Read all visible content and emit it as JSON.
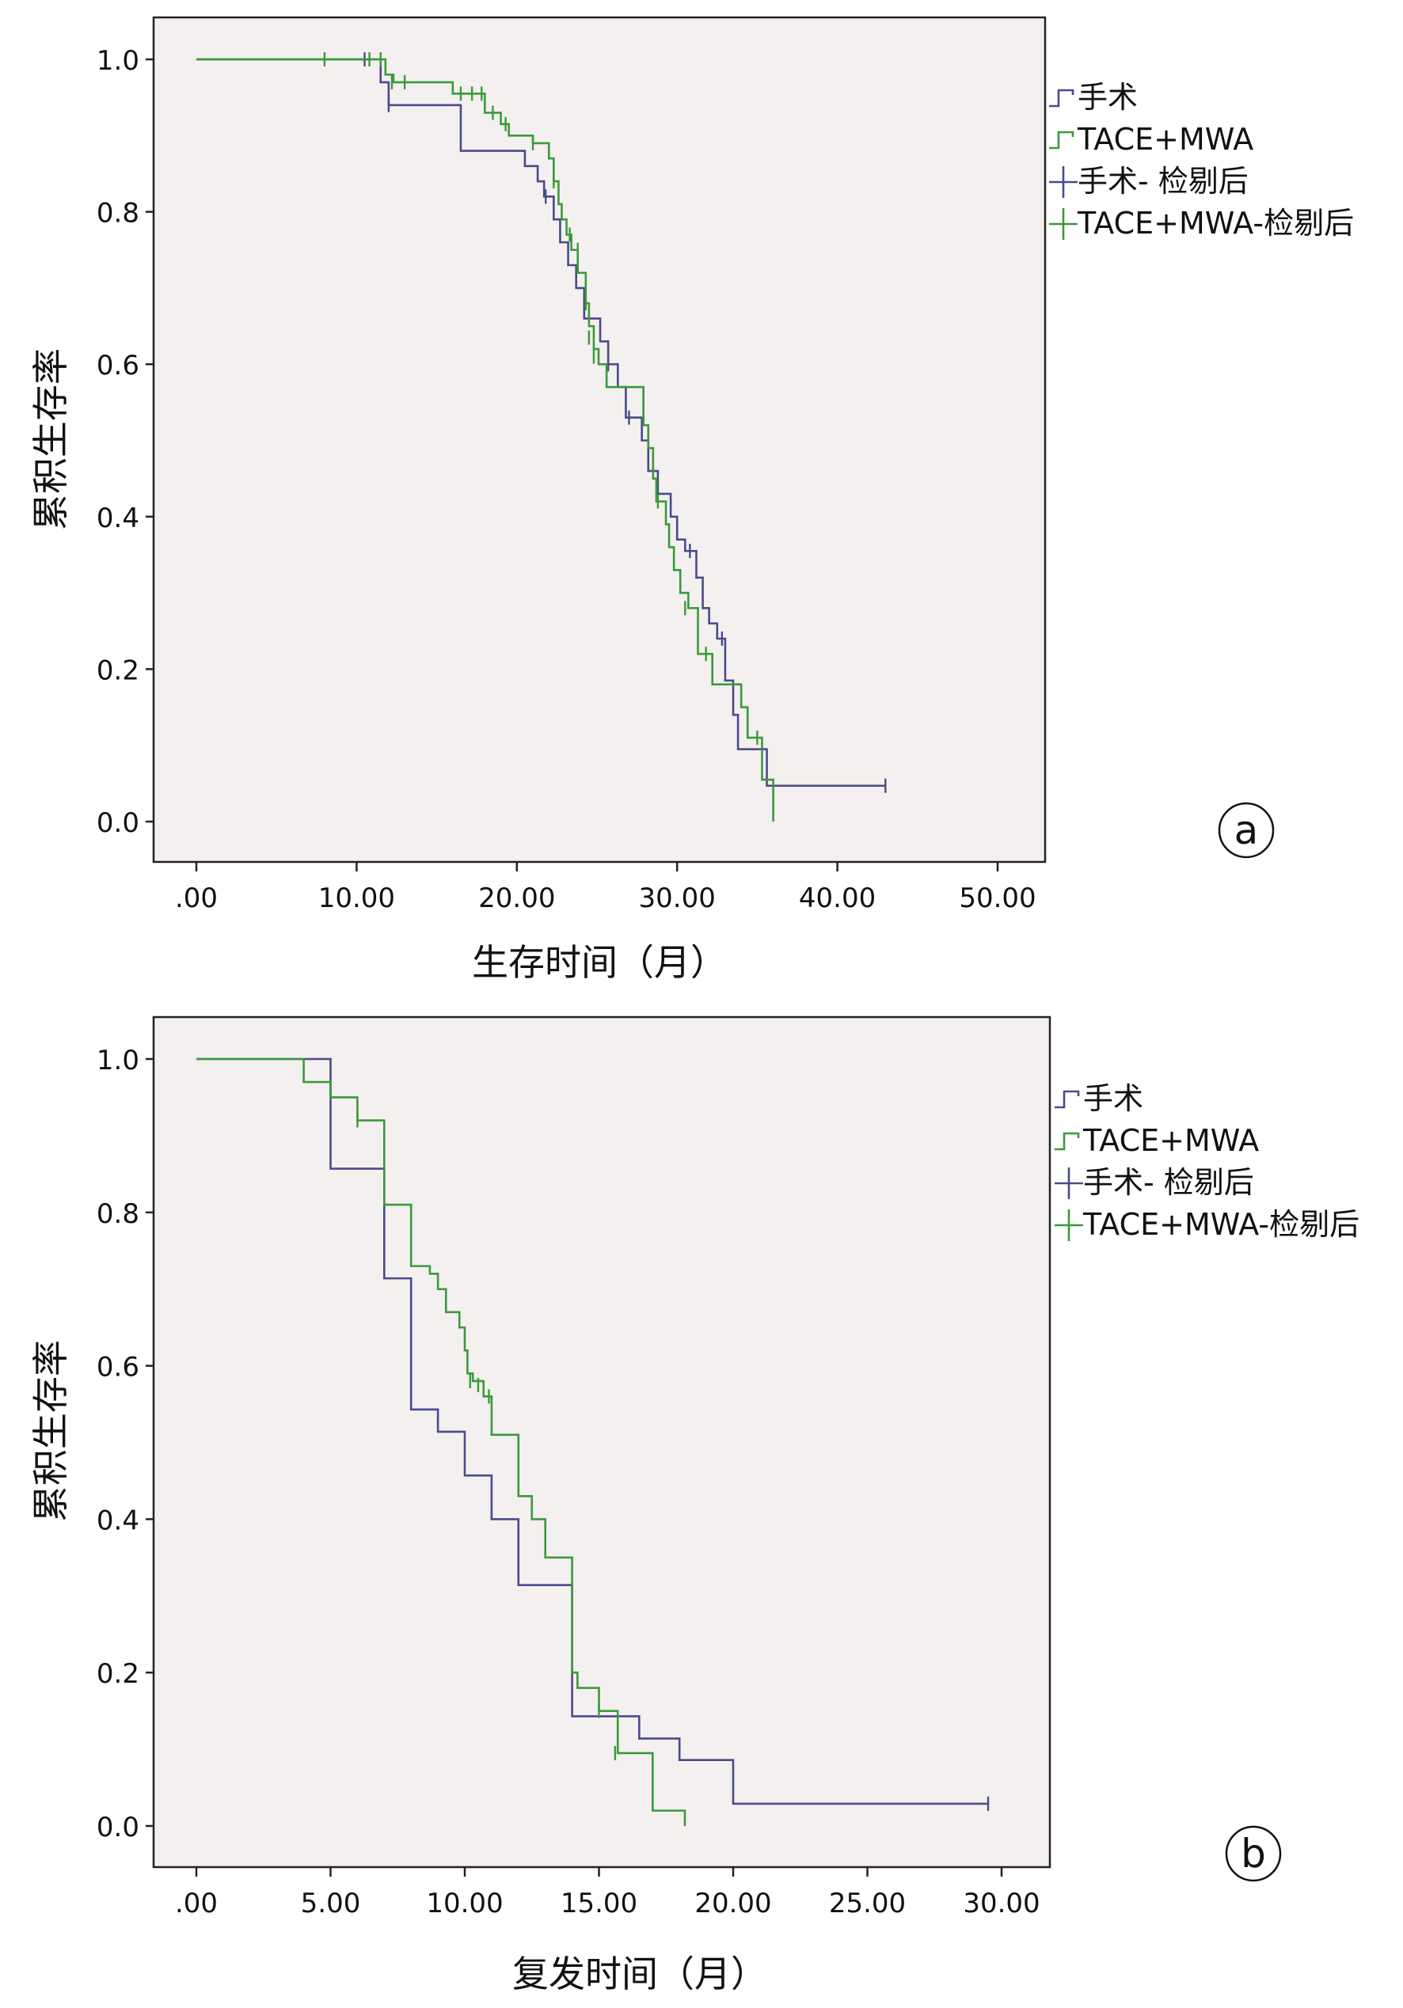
{
  "chart_data": [
    {
      "panel": "a",
      "type": "line",
      "step": true,
      "title": "",
      "xlabel": "生存时间（月）",
      "ylabel": "累积生存率",
      "xlim": [
        0,
        50
      ],
      "ylim": [
        0,
        1
      ],
      "xticks": [
        ".00",
        "10.00",
        "20.00",
        "30.00",
        "40.00",
        "50.00"
      ],
      "yticks": [
        "0.0",
        "0.2",
        "0.4",
        "0.6",
        "0.8",
        "1.0"
      ],
      "legend": [
        "手术",
        "TACE+MWA",
        "手术- 检剔后",
        "TACE+MWA-检剔后"
      ],
      "legend_position": "right",
      "background_color": "#f4f0ef",
      "series": [
        {
          "name": "手术",
          "color": "#4a4a8c",
          "steps": [
            [
              0,
              1.0
            ],
            [
              11.5,
              0.97
            ],
            [
              12.0,
              0.94
            ],
            [
              16.5,
              0.88
            ],
            [
              20.0,
              0.88
            ],
            [
              20.5,
              0.86
            ],
            [
              21.3,
              0.84
            ],
            [
              21.7,
              0.82
            ],
            [
              22.3,
              0.79
            ],
            [
              22.7,
              0.76
            ],
            [
              23.2,
              0.73
            ],
            [
              23.7,
              0.7
            ],
            [
              24.2,
              0.66
            ],
            [
              25.2,
              0.63
            ],
            [
              25.7,
              0.6
            ],
            [
              26.3,
              0.57
            ],
            [
              26.8,
              0.53
            ],
            [
              27.8,
              0.5
            ],
            [
              28.2,
              0.46
            ],
            [
              28.8,
              0.43
            ],
            [
              29.6,
              0.4
            ],
            [
              30.0,
              0.37
            ],
            [
              30.5,
              0.355
            ],
            [
              31.2,
              0.32
            ],
            [
              31.6,
              0.28
            ],
            [
              32.0,
              0.26
            ],
            [
              32.5,
              0.24
            ],
            [
              33.0,
              0.185
            ],
            [
              33.5,
              0.14
            ],
            [
              33.8,
              0.095
            ],
            [
              35.6,
              0.047
            ],
            [
              43.0,
              0.047
            ]
          ],
          "censors": [
            [
              10.5,
              1.0
            ],
            [
              12.0,
              0.94
            ],
            [
              21.8,
              0.82
            ],
            [
              25.7,
              0.6
            ],
            [
              27.0,
              0.53
            ],
            [
              30.8,
              0.355
            ],
            [
              32.8,
              0.24
            ],
            [
              43.0,
              0.047
            ]
          ]
        },
        {
          "name": "TACE+MWA",
          "color": "#3a9a3a",
          "steps": [
            [
              0,
              1.0
            ],
            [
              11.8,
              0.98
            ],
            [
              12.3,
              0.97
            ],
            [
              16.0,
              0.955
            ],
            [
              18.0,
              0.93
            ],
            [
              19.0,
              0.915
            ],
            [
              19.5,
              0.9
            ],
            [
              21.0,
              0.89
            ],
            [
              22.0,
              0.87
            ],
            [
              22.3,
              0.84
            ],
            [
              22.6,
              0.81
            ],
            [
              22.8,
              0.79
            ],
            [
              23.1,
              0.77
            ],
            [
              23.4,
              0.75
            ],
            [
              23.8,
              0.72
            ],
            [
              24.3,
              0.68
            ],
            [
              24.5,
              0.65
            ],
            [
              24.8,
              0.62
            ],
            [
              25.1,
              0.6
            ],
            [
              25.6,
              0.57
            ],
            [
              27.9,
              0.52
            ],
            [
              28.2,
              0.49
            ],
            [
              28.5,
              0.45
            ],
            [
              28.7,
              0.42
            ],
            [
              29.3,
              0.39
            ],
            [
              29.5,
              0.36
            ],
            [
              29.8,
              0.33
            ],
            [
              30.2,
              0.3
            ],
            [
              30.7,
              0.28
            ],
            [
              31.3,
              0.22
            ],
            [
              32.2,
              0.18
            ],
            [
              34.0,
              0.15
            ],
            [
              34.4,
              0.11
            ],
            [
              35.3,
              0.055
            ],
            [
              36.0,
              0.0
            ]
          ],
          "censors": [
            [
              8.0,
              1.0
            ],
            [
              10.8,
              1.0
            ],
            [
              11.5,
              1.0
            ],
            [
              12.2,
              0.97
            ],
            [
              13.0,
              0.97
            ],
            [
              16.5,
              0.955
            ],
            [
              17.2,
              0.955
            ],
            [
              17.8,
              0.955
            ],
            [
              18.5,
              0.93
            ],
            [
              19.3,
              0.915
            ],
            [
              21.0,
              0.89
            ],
            [
              22.3,
              0.84
            ],
            [
              23.3,
              0.77
            ],
            [
              23.8,
              0.75
            ],
            [
              24.3,
              0.68
            ],
            [
              24.5,
              0.635
            ],
            [
              24.8,
              0.61
            ],
            [
              28.8,
              0.42
            ],
            [
              30.5,
              0.28
            ],
            [
              31.8,
              0.22
            ],
            [
              35.0,
              0.11
            ]
          ]
        }
      ]
    },
    {
      "panel": "b",
      "type": "line",
      "step": true,
      "title": "",
      "xlabel": "复发时间（月）",
      "ylabel": "累积生存率",
      "xlim": [
        0,
        30
      ],
      "ylim": [
        0,
        1
      ],
      "xticks": [
        ".00",
        "5.00",
        "10.00",
        "15.00",
        "20.00",
        "25.00",
        "30.00"
      ],
      "yticks": [
        "0.0",
        "0.2",
        "0.4",
        "0.6",
        "0.8",
        "1.0"
      ],
      "legend": [
        "手术",
        "TACE+MWA",
        "手术- 检剔后",
        "TACE+MWA-检剔后"
      ],
      "legend_position": "right",
      "background_color": "#f4f0ef",
      "series": [
        {
          "name": "手术",
          "color": "#4a4a8c",
          "steps": [
            [
              0,
              1.0
            ],
            [
              5.0,
              0.857
            ],
            [
              7.0,
              0.714
            ],
            [
              8.0,
              0.543
            ],
            [
              9.0,
              0.514
            ],
            [
              10.0,
              0.457
            ],
            [
              11.0,
              0.4
            ],
            [
              12.0,
              0.314
            ],
            [
              14.0,
              0.143
            ],
            [
              16.5,
              0.114
            ],
            [
              18.0,
              0.086
            ],
            [
              20.0,
              0.029
            ],
            [
              29.5,
              0.029
            ]
          ],
          "censors": [
            [
              29.5,
              0.029
            ]
          ]
        },
        {
          "name": "TACE+MWA",
          "color": "#3a9a3a",
          "steps": [
            [
              0,
              1.0
            ],
            [
              4.0,
              0.97
            ],
            [
              5.0,
              0.95
            ],
            [
              6.0,
              0.92
            ],
            [
              7.0,
              0.81
            ],
            [
              8.0,
              0.73
            ],
            [
              8.7,
              0.72
            ],
            [
              9.0,
              0.7
            ],
            [
              9.3,
              0.67
            ],
            [
              9.8,
              0.65
            ],
            [
              10.0,
              0.62
            ],
            [
              10.1,
              0.59
            ],
            [
              10.3,
              0.58
            ],
            [
              10.7,
              0.56
            ],
            [
              11.0,
              0.51
            ],
            [
              12.0,
              0.43
            ],
            [
              12.5,
              0.4
            ],
            [
              13.0,
              0.35
            ],
            [
              14.0,
              0.2
            ],
            [
              14.2,
              0.18
            ],
            [
              15.0,
              0.15
            ],
            [
              15.7,
              0.095
            ],
            [
              17.0,
              0.02
            ],
            [
              18.2,
              0.0
            ]
          ],
          "censors": [
            [
              6.0,
              0.92
            ],
            [
              10.2,
              0.58
            ],
            [
              10.5,
              0.575
            ],
            [
              10.9,
              0.56
            ],
            [
              15.0,
              0.15
            ],
            [
              15.6,
              0.095
            ]
          ]
        }
      ]
    }
  ],
  "labels": {
    "panel_a": "a",
    "panel_b": "b"
  }
}
